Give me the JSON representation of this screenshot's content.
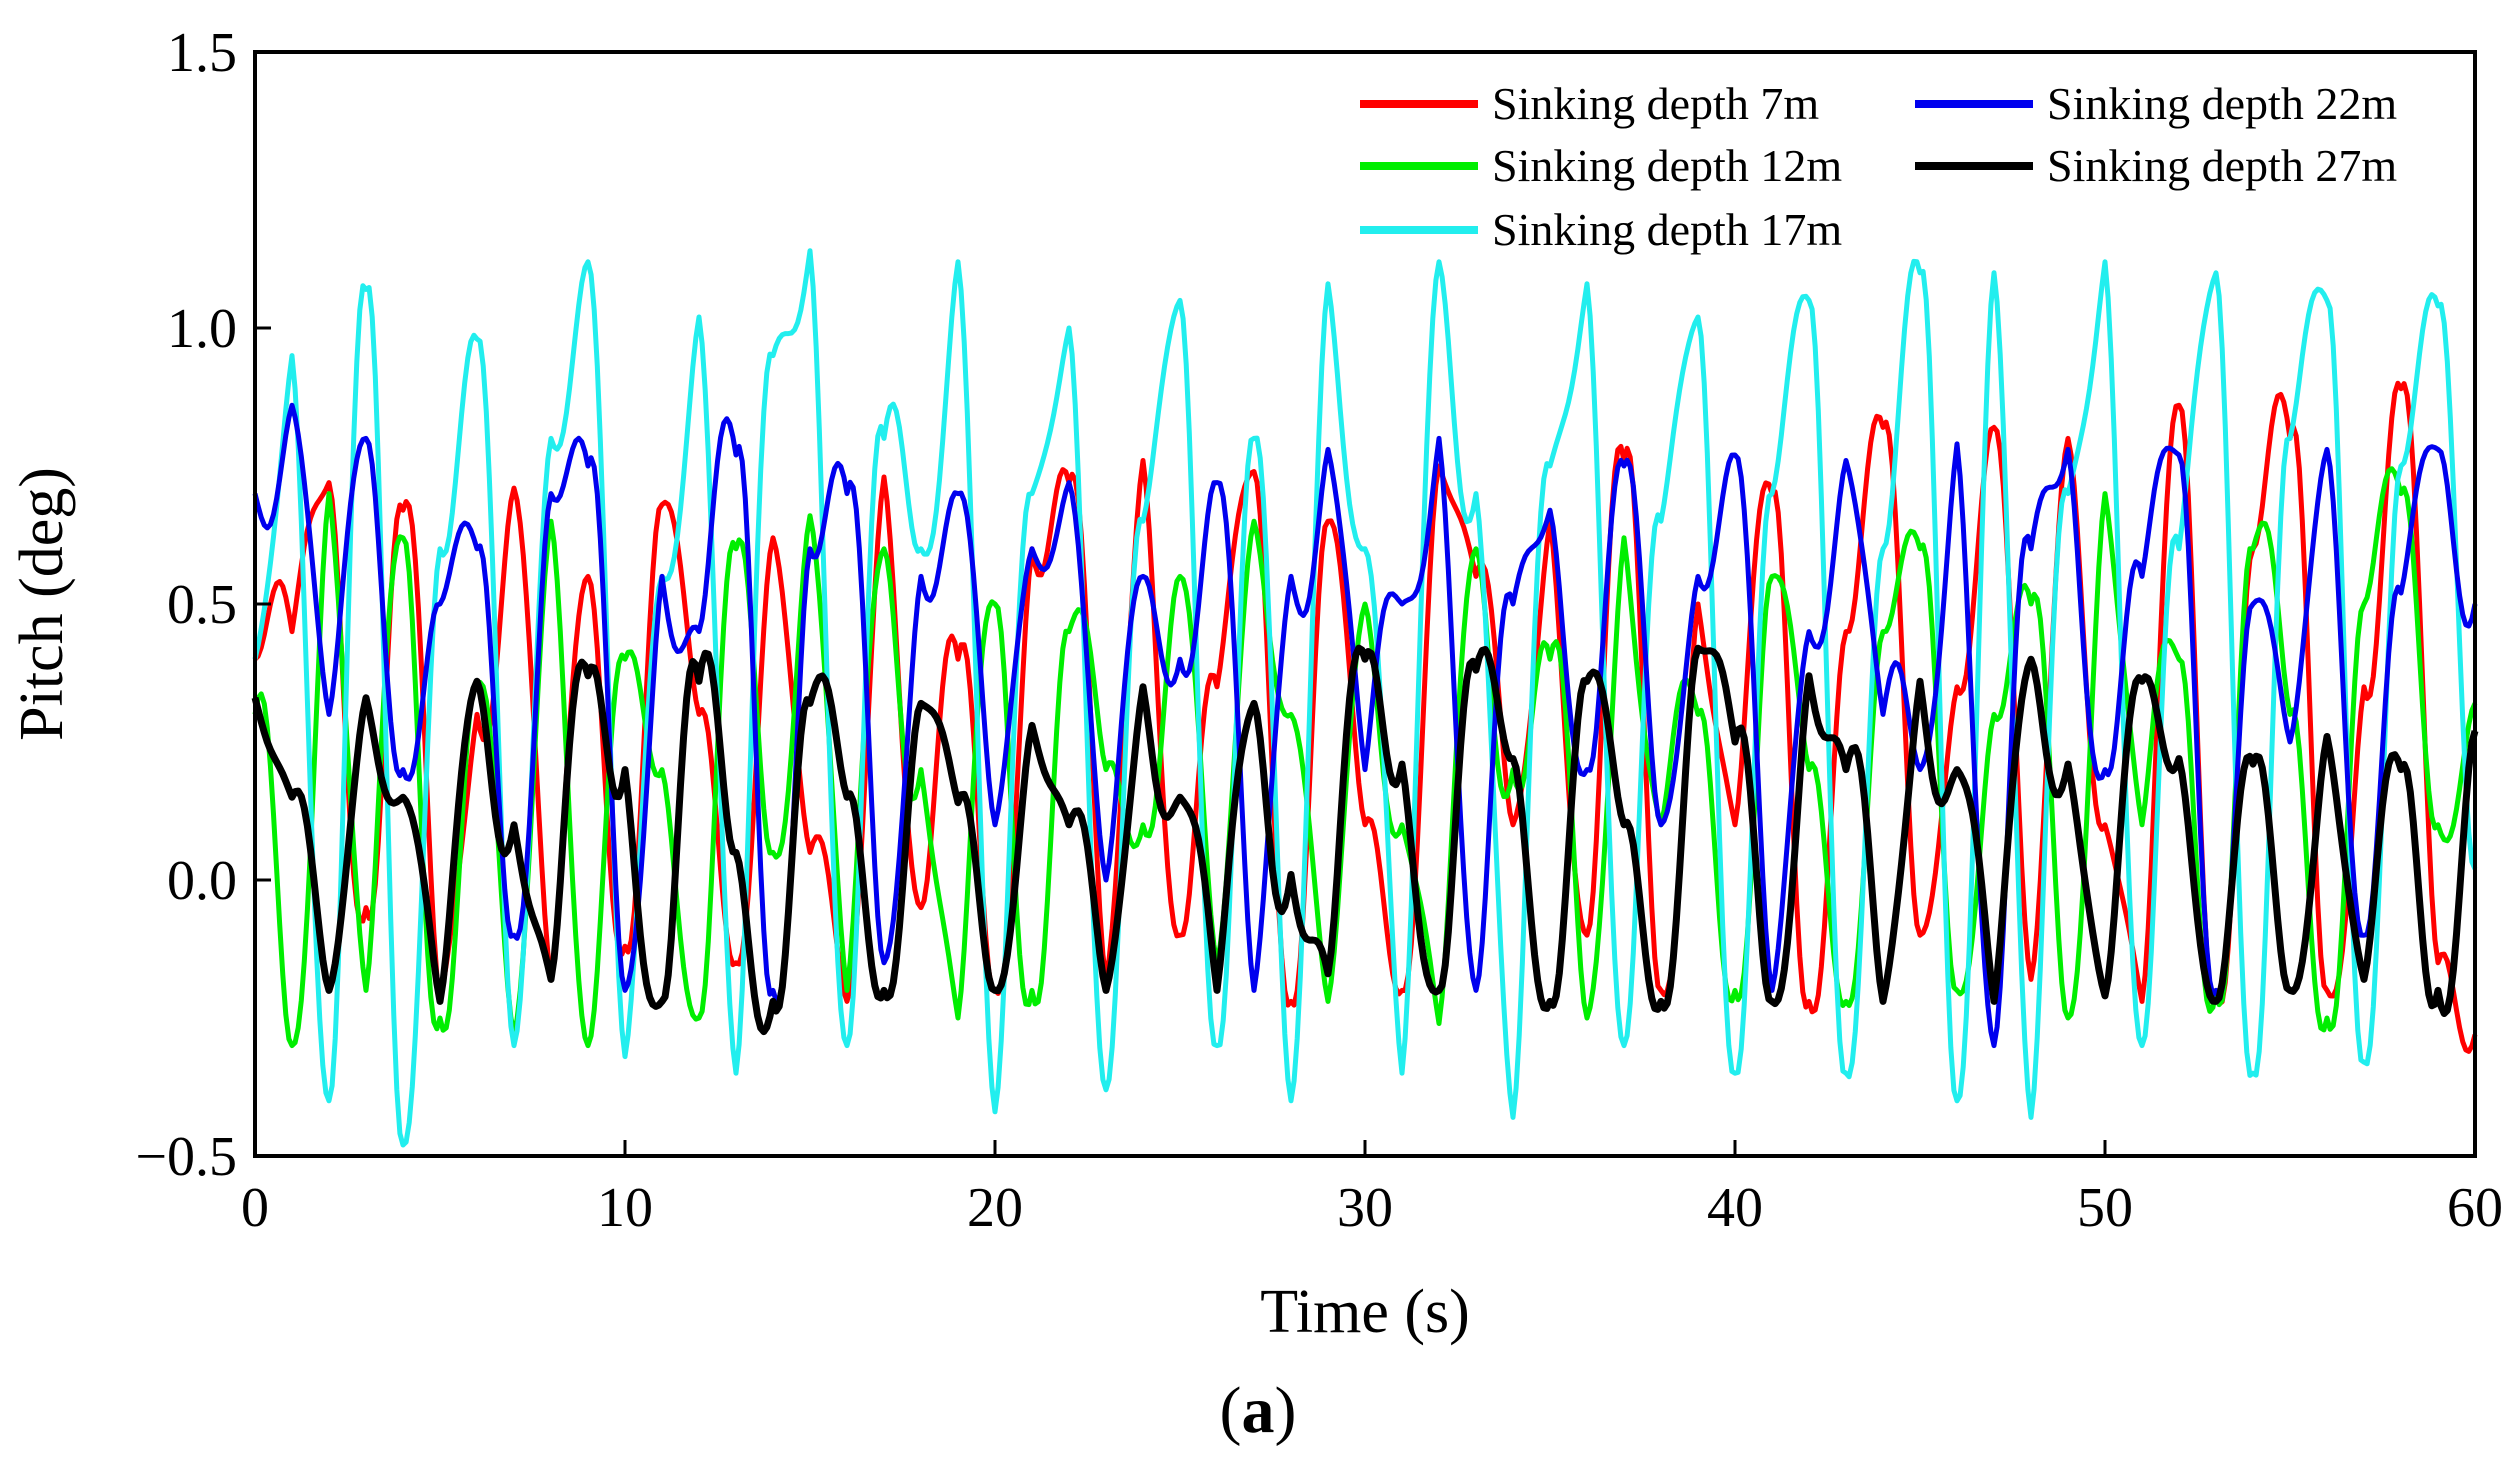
{
  "chart_data": {
    "type": "line",
    "title": "",
    "xlabel": "Time (s)",
    "ylabel": "Pitch (deg)",
    "xlim": [
      0,
      60
    ],
    "ylim": [
      -0.5,
      1.5
    ],
    "xticks": [
      0,
      10,
      20,
      30,
      40,
      50,
      60
    ],
    "xtick_labels": [
      "0",
      "10",
      "20",
      "30",
      "40",
      "50",
      "60"
    ],
    "yticks": [
      -0.5,
      0.0,
      0.5,
      1.0,
      1.5
    ],
    "ytick_labels": [
      "−0.5",
      "0.0",
      "0.5",
      "1.0",
      "1.5"
    ],
    "grid": false,
    "legend_position": "top-right",
    "caption_open": "(",
    "caption_letter": "a",
    "caption_close": ")",
    "series": [
      {
        "name": "Sinking depth 7m",
        "color": "#ff0000",
        "period_s": 3.6,
        "x": [
          0,
          1,
          2,
          3,
          4,
          5,
          6,
          7,
          8,
          9,
          10,
          11,
          12,
          13,
          14,
          15,
          16,
          17,
          18,
          19,
          20,
          21,
          22,
          23,
          24,
          25,
          26,
          27,
          28,
          29,
          30,
          31,
          32,
          33,
          34,
          35,
          36,
          37,
          38,
          39,
          40,
          41,
          42,
          43,
          44,
          45,
          46,
          47,
          48,
          49,
          50,
          51,
          52,
          53,
          54,
          55,
          56,
          57,
          58,
          59,
          60
        ],
        "y": [
          0.4,
          0.45,
          0.72,
          -0.05,
          0.67,
          -0.22,
          0.3,
          0.71,
          -0.18,
          0.55,
          -0.12,
          0.68,
          0.3,
          -0.15,
          0.62,
          0.05,
          -0.22,
          0.73,
          -0.05,
          0.4,
          -0.2,
          0.6,
          0.72,
          -0.18,
          0.76,
          -0.1,
          0.35,
          0.74,
          -0.22,
          0.65,
          0.1,
          -0.2,
          0.75,
          0.55,
          0.1,
          0.65,
          -0.1,
          0.76,
          -0.2,
          0.5,
          0.1,
          0.7,
          -0.22,
          0.45,
          0.82,
          -0.1,
          0.35,
          0.82,
          -0.18,
          0.8,
          0.1,
          -0.22,
          0.86,
          -0.2,
          0.6,
          0.8,
          -0.2,
          0.35,
          0.89,
          -0.15,
          -0.28
        ]
      },
      {
        "name": "Sinking depth 12m",
        "color": "#00ee00",
        "period_s": 3.2,
        "x": [
          0,
          1,
          2,
          3,
          4,
          5,
          6,
          7,
          8,
          9,
          10,
          11,
          12,
          13,
          14,
          15,
          16,
          17,
          18,
          19,
          20,
          21,
          22,
          23,
          24,
          25,
          26,
          27,
          28,
          29,
          30,
          31,
          32,
          33,
          34,
          35,
          36,
          37,
          38,
          39,
          40,
          41,
          42,
          43,
          44,
          45,
          46,
          47,
          48,
          49,
          50,
          51,
          52,
          53,
          54,
          55,
          56,
          57,
          58,
          59,
          60
        ],
        "y": [
          0.3,
          -0.3,
          0.7,
          -0.2,
          0.62,
          -0.25,
          0.35,
          -0.28,
          0.65,
          -0.3,
          0.4,
          0.2,
          -0.25,
          0.6,
          0.05,
          0.66,
          -0.2,
          0.6,
          0.2,
          -0.25,
          0.5,
          -0.2,
          0.45,
          0.2,
          0.1,
          0.55,
          -0.15,
          0.65,
          0.3,
          -0.22,
          0.5,
          0.1,
          -0.26,
          0.6,
          0.2,
          0.4,
          -0.25,
          0.62,
          0.1,
          0.3,
          -0.2,
          0.55,
          0.2,
          -0.22,
          0.45,
          0.6,
          -0.2,
          0.3,
          0.5,
          -0.25,
          0.7,
          0.1,
          0.4,
          -0.2,
          0.6,
          0.3,
          -0.25,
          0.5,
          0.7,
          0.1,
          0.32
        ]
      },
      {
        "name": "Sinking depth 17m",
        "color": "#22eeee",
        "period_s": 3.5,
        "x": [
          0,
          1,
          2,
          3,
          4,
          5,
          6,
          7,
          8,
          9,
          10,
          11,
          12,
          13,
          14,
          15,
          16,
          17,
          18,
          19,
          20,
          21,
          22,
          23,
          24,
          25,
          26,
          27,
          28,
          29,
          30,
          31,
          32,
          33,
          34,
          35,
          36,
          37,
          38,
          39,
          40,
          41,
          42,
          43,
          44,
          45,
          46,
          47,
          48,
          49,
          50,
          51,
          52,
          53,
          54,
          55,
          56,
          57,
          58,
          59,
          60
        ],
        "y": [
          0.4,
          0.95,
          -0.4,
          1.07,
          -0.48,
          0.6,
          0.98,
          -0.3,
          0.8,
          1.12,
          -0.32,
          0.55,
          1.02,
          -0.35,
          0.95,
          1.14,
          -0.3,
          0.8,
          0.6,
          1.12,
          -0.42,
          0.7,
          1.0,
          -0.38,
          0.65,
          1.05,
          -0.3,
          0.8,
          -0.4,
          1.08,
          0.6,
          -0.35,
          1.12,
          0.7,
          -0.43,
          0.75,
          1.08,
          -0.3,
          0.65,
          1.02,
          -0.35,
          0.7,
          1.05,
          -0.35,
          0.6,
          1.1,
          -0.4,
          1.1,
          -0.43,
          0.7,
          1.12,
          -0.3,
          0.6,
          1.1,
          -0.35,
          0.8,
          1.05,
          -0.33,
          0.75,
          1.04,
          0.02
        ]
      },
      {
        "name": "Sinking depth 22m",
        "color": "#0000ee",
        "period_s": 3.5,
        "x": [
          0,
          1,
          2,
          3,
          4,
          5,
          6,
          7,
          8,
          9,
          10,
          11,
          12,
          13,
          14,
          15,
          16,
          17,
          18,
          19,
          20,
          21,
          22,
          23,
          24,
          25,
          26,
          27,
          28,
          29,
          30,
          31,
          32,
          33,
          34,
          35,
          36,
          37,
          38,
          39,
          40,
          41,
          42,
          43,
          44,
          45,
          46,
          47,
          48,
          49,
          50,
          51,
          52,
          53,
          54,
          55,
          56,
          57,
          58,
          59,
          60
        ],
        "y": [
          0.7,
          0.86,
          0.3,
          0.8,
          0.2,
          0.5,
          0.6,
          -0.1,
          0.7,
          0.75,
          -0.2,
          0.55,
          0.45,
          0.77,
          -0.2,
          0.6,
          0.7,
          -0.15,
          0.55,
          0.7,
          0.1,
          0.6,
          0.72,
          0.0,
          0.55,
          0.4,
          0.72,
          -0.2,
          0.55,
          0.78,
          0.2,
          0.5,
          0.8,
          -0.2,
          0.5,
          0.67,
          0.2,
          0.75,
          0.1,
          0.55,
          0.77,
          -0.2,
          0.45,
          0.76,
          0.3,
          0.2,
          0.79,
          -0.3,
          0.6,
          0.78,
          0.2,
          0.55,
          0.77,
          -0.2,
          0.5,
          0.25,
          0.78,
          -0.1,
          0.52,
          0.78,
          0.5
        ]
      },
      {
        "name": "Sinking depth 27m",
        "color": "#000000",
        "period_s": 3.5,
        "x": [
          0,
          1,
          2,
          3,
          4,
          5,
          6,
          7,
          8,
          9,
          10,
          11,
          12,
          13,
          14,
          15,
          16,
          17,
          18,
          19,
          20,
          21,
          22,
          23,
          24,
          25,
          26,
          27,
          28,
          29,
          30,
          31,
          32,
          33,
          34,
          35,
          36,
          37,
          38,
          39,
          40,
          41,
          42,
          43,
          44,
          45,
          46,
          47,
          48,
          49,
          50,
          51,
          52,
          53,
          54,
          55,
          56,
          57,
          58,
          59,
          60
        ],
        "y": [
          0.33,
          0.15,
          -0.2,
          0.33,
          0.15,
          -0.22,
          0.36,
          0.1,
          -0.18,
          0.37,
          0.2,
          -0.22,
          0.36,
          0.05,
          -0.22,
          0.32,
          0.15,
          -0.2,
          0.32,
          0.14,
          -0.2,
          0.28,
          0.1,
          -0.2,
          0.35,
          0.15,
          -0.2,
          0.32,
          0.01,
          -0.17,
          0.4,
          0.21,
          -0.2,
          0.38,
          0.22,
          -0.22,
          0.36,
          0.1,
          -0.22,
          0.42,
          0.25,
          -0.22,
          0.37,
          0.2,
          -0.22,
          0.36,
          0.2,
          -0.22,
          0.4,
          0.21,
          -0.21,
          0.36,
          0.22,
          -0.22,
          0.21,
          -0.2,
          0.26,
          -0.18,
          0.2,
          -0.2,
          0.27
        ]
      }
    ]
  }
}
